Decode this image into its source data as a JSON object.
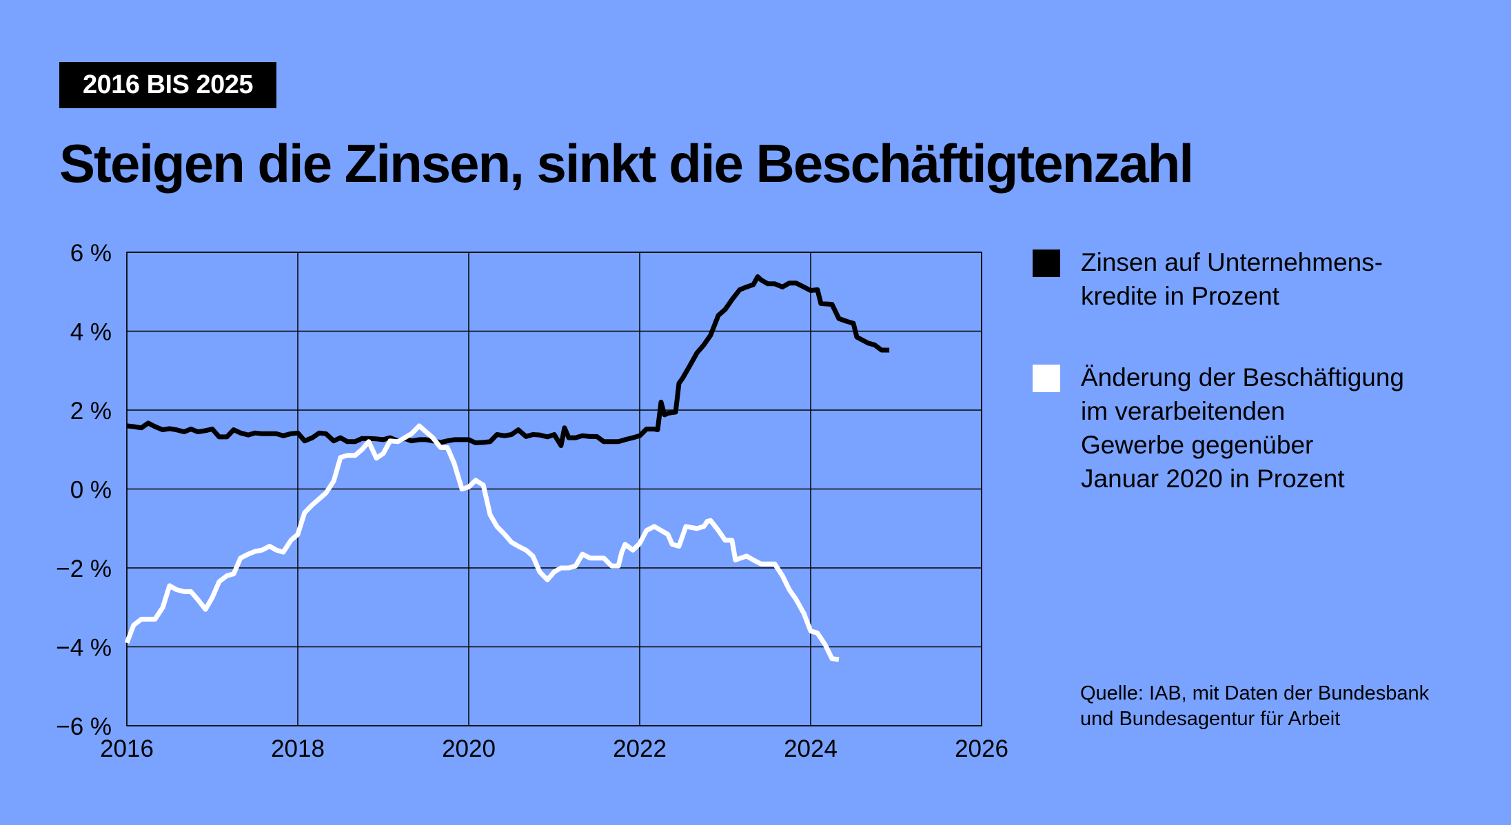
{
  "badge": "2016 BIS 2025",
  "title": "Steigen die Zinsen, sinkt die Beschäftigtenzahl",
  "legend": [
    {
      "label": "Zinsen auf Unternehmens-kredite in Prozent",
      "lines": [
        "Zinsen auf Unternehmens-",
        "kredite in Prozent"
      ],
      "color": "#000000"
    },
    {
      "label": "Änderung der Beschäftigung im verarbeitenden Gewerbe gegenüber Januar 2020 in Prozent",
      "lines": [
        "Änderung der Beschäftigung",
        "im verarbeitenden",
        "Gewerbe gegenüber",
        "Januar 2020 in Prozent"
      ],
      "color": "#ffffff"
    }
  ],
  "source": [
    "Quelle: IAB, mit Daten der Bundesbank",
    "und Bundesagentur für Arbeit"
  ],
  "colors": {
    "background": "#7aa2ff",
    "interest": "#000000",
    "employment": "#ffffff"
  },
  "chart_data": {
    "type": "line",
    "grid": true,
    "legend_position": "right",
    "xlim": [
      2016,
      2026
    ],
    "ylim": [
      -6,
      6
    ],
    "x_ticks": [
      2016,
      2018,
      2020,
      2022,
      2024,
      2026
    ],
    "x_tick_labels": [
      "2016",
      "2018",
      "2020",
      "2022",
      "2024",
      "2026"
    ],
    "y_ticks": [
      6,
      4,
      2,
      0,
      -2,
      -4,
      -6
    ],
    "y_tick_labels": [
      "6 %",
      "4 %",
      "2 %",
      "0 %",
      "−2 %",
      "−4 %",
      "−6 %"
    ],
    "series": [
      {
        "name": "Zinsen auf Unternehmens-kredite in Prozent",
        "color": "#000000",
        "points": [
          [
            2016.0,
            1.6
          ],
          [
            2016.08,
            1.58
          ],
          [
            2016.17,
            1.55
          ],
          [
            2016.25,
            1.67
          ],
          [
            2016.33,
            1.58
          ],
          [
            2016.42,
            1.5
          ],
          [
            2016.5,
            1.53
          ],
          [
            2016.58,
            1.5
          ],
          [
            2016.67,
            1.45
          ],
          [
            2016.75,
            1.52
          ],
          [
            2016.83,
            1.45
          ],
          [
            2016.92,
            1.48
          ],
          [
            2017.0,
            1.52
          ],
          [
            2017.08,
            1.32
          ],
          [
            2017.17,
            1.32
          ],
          [
            2017.25,
            1.5
          ],
          [
            2017.33,
            1.42
          ],
          [
            2017.42,
            1.37
          ],
          [
            2017.5,
            1.42
          ],
          [
            2017.58,
            1.4
          ],
          [
            2017.67,
            1.4
          ],
          [
            2017.75,
            1.4
          ],
          [
            2017.83,
            1.35
          ],
          [
            2017.92,
            1.4
          ],
          [
            2018.0,
            1.42
          ],
          [
            2018.08,
            1.22
          ],
          [
            2018.17,
            1.3
          ],
          [
            2018.25,
            1.42
          ],
          [
            2018.33,
            1.4
          ],
          [
            2018.42,
            1.22
          ],
          [
            2018.5,
            1.3
          ],
          [
            2018.58,
            1.2
          ],
          [
            2018.67,
            1.2
          ],
          [
            2018.75,
            1.28
          ],
          [
            2018.83,
            1.28
          ],
          [
            2018.92,
            1.27
          ],
          [
            2019.0,
            1.25
          ],
          [
            2019.08,
            1.3
          ],
          [
            2019.17,
            1.22
          ],
          [
            2019.25,
            1.28
          ],
          [
            2019.33,
            1.22
          ],
          [
            2019.42,
            1.25
          ],
          [
            2019.5,
            1.25
          ],
          [
            2019.58,
            1.22
          ],
          [
            2019.67,
            1.18
          ],
          [
            2019.75,
            1.22
          ],
          [
            2019.83,
            1.25
          ],
          [
            2019.92,
            1.25
          ],
          [
            2020.0,
            1.25
          ],
          [
            2020.08,
            1.17
          ],
          [
            2020.17,
            1.18
          ],
          [
            2020.25,
            1.2
          ],
          [
            2020.33,
            1.38
          ],
          [
            2020.42,
            1.35
          ],
          [
            2020.5,
            1.38
          ],
          [
            2020.58,
            1.5
          ],
          [
            2020.67,
            1.33
          ],
          [
            2020.75,
            1.38
          ],
          [
            2020.83,
            1.37
          ],
          [
            2020.92,
            1.32
          ],
          [
            2021.0,
            1.38
          ],
          [
            2021.08,
            1.1
          ],
          [
            2021.12,
            1.55
          ],
          [
            2021.17,
            1.3
          ],
          [
            2021.25,
            1.3
          ],
          [
            2021.33,
            1.35
          ],
          [
            2021.42,
            1.33
          ],
          [
            2021.5,
            1.33
          ],
          [
            2021.58,
            1.2
          ],
          [
            2021.67,
            1.2
          ],
          [
            2021.75,
            1.2
          ],
          [
            2021.83,
            1.25
          ],
          [
            2021.92,
            1.3
          ],
          [
            2022.0,
            1.35
          ],
          [
            2022.08,
            1.52
          ],
          [
            2022.17,
            1.52
          ],
          [
            2022.21,
            1.5
          ],
          [
            2022.25,
            2.2
          ],
          [
            2022.29,
            1.88
          ],
          [
            2022.33,
            1.92
          ],
          [
            2022.42,
            1.95
          ],
          [
            2022.46,
            2.68
          ],
          [
            2022.5,
            2.8
          ],
          [
            2022.58,
            3.1
          ],
          [
            2022.67,
            3.45
          ],
          [
            2022.75,
            3.65
          ],
          [
            2022.83,
            3.9
          ],
          [
            2022.92,
            4.4
          ],
          [
            2023.0,
            4.55
          ],
          [
            2023.08,
            4.8
          ],
          [
            2023.17,
            5.05
          ],
          [
            2023.25,
            5.12
          ],
          [
            2023.33,
            5.18
          ],
          [
            2023.38,
            5.38
          ],
          [
            2023.42,
            5.3
          ],
          [
            2023.5,
            5.2
          ],
          [
            2023.58,
            5.2
          ],
          [
            2023.67,
            5.12
          ],
          [
            2023.75,
            5.22
          ],
          [
            2023.83,
            5.22
          ],
          [
            2023.92,
            5.12
          ],
          [
            2024.0,
            5.03
          ],
          [
            2024.08,
            5.05
          ],
          [
            2024.12,
            4.7
          ],
          [
            2024.25,
            4.68
          ],
          [
            2024.33,
            4.32
          ],
          [
            2024.42,
            4.25
          ],
          [
            2024.5,
            4.2
          ],
          [
            2024.54,
            3.85
          ],
          [
            2024.67,
            3.7
          ],
          [
            2024.75,
            3.65
          ],
          [
            2024.83,
            3.52
          ],
          [
            2024.92,
            3.52
          ]
        ]
      },
      {
        "name": "Änderung der Beschäftigung im verarbeitenden Gewerbe gegenüber Januar 2020 in Prozent",
        "color": "#ffffff",
        "points": [
          [
            2016.0,
            -3.9
          ],
          [
            2016.08,
            -3.45
          ],
          [
            2016.17,
            -3.3
          ],
          [
            2016.25,
            -3.3
          ],
          [
            2016.33,
            -3.3
          ],
          [
            2016.42,
            -3.0
          ],
          [
            2016.5,
            -2.45
          ],
          [
            2016.58,
            -2.55
          ],
          [
            2016.67,
            -2.6
          ],
          [
            2016.75,
            -2.6
          ],
          [
            2016.83,
            -2.8
          ],
          [
            2016.92,
            -3.05
          ],
          [
            2017.0,
            -2.75
          ],
          [
            2017.08,
            -2.35
          ],
          [
            2017.17,
            -2.2
          ],
          [
            2017.25,
            -2.15
          ],
          [
            2017.33,
            -1.75
          ],
          [
            2017.42,
            -1.65
          ],
          [
            2017.5,
            -1.58
          ],
          [
            2017.58,
            -1.55
          ],
          [
            2017.67,
            -1.45
          ],
          [
            2017.75,
            -1.55
          ],
          [
            2017.83,
            -1.6
          ],
          [
            2017.92,
            -1.3
          ],
          [
            2018.0,
            -1.15
          ],
          [
            2018.08,
            -0.6
          ],
          [
            2018.17,
            -0.4
          ],
          [
            2018.25,
            -0.25
          ],
          [
            2018.33,
            -0.1
          ],
          [
            2018.42,
            0.2
          ],
          [
            2018.5,
            0.8
          ],
          [
            2018.58,
            0.85
          ],
          [
            2018.67,
            0.85
          ],
          [
            2018.75,
            1.0
          ],
          [
            2018.83,
            1.2
          ],
          [
            2018.92,
            0.78
          ],
          [
            2019.0,
            0.9
          ],
          [
            2019.08,
            1.22
          ],
          [
            2019.17,
            1.2
          ],
          [
            2019.25,
            1.3
          ],
          [
            2019.33,
            1.4
          ],
          [
            2019.42,
            1.6
          ],
          [
            2019.5,
            1.45
          ],
          [
            2019.58,
            1.3
          ],
          [
            2019.67,
            1.05
          ],
          [
            2019.75,
            1.05
          ],
          [
            2019.83,
            0.65
          ],
          [
            2019.92,
            0.0
          ],
          [
            2020.0,
            0.05
          ],
          [
            2020.08,
            0.22
          ],
          [
            2020.17,
            0.1
          ],
          [
            2020.25,
            -0.65
          ],
          [
            2020.33,
            -0.95
          ],
          [
            2020.42,
            -1.15
          ],
          [
            2020.5,
            -1.35
          ],
          [
            2020.58,
            -1.45
          ],
          [
            2020.67,
            -1.55
          ],
          [
            2020.75,
            -1.7
          ],
          [
            2020.83,
            -2.1
          ],
          [
            2020.92,
            -2.3
          ],
          [
            2021.0,
            -2.1
          ],
          [
            2021.08,
            -2.0
          ],
          [
            2021.17,
            -2.0
          ],
          [
            2021.25,
            -1.95
          ],
          [
            2021.33,
            -1.65
          ],
          [
            2021.42,
            -1.75
          ],
          [
            2021.5,
            -1.75
          ],
          [
            2021.58,
            -1.75
          ],
          [
            2021.67,
            -1.95
          ],
          [
            2021.75,
            -1.95
          ],
          [
            2021.79,
            -1.6
          ],
          [
            2021.83,
            -1.4
          ],
          [
            2021.92,
            -1.55
          ],
          [
            2022.0,
            -1.38
          ],
          [
            2022.08,
            -1.05
          ],
          [
            2022.17,
            -0.95
          ],
          [
            2022.25,
            -1.05
          ],
          [
            2022.33,
            -1.15
          ],
          [
            2022.38,
            -1.4
          ],
          [
            2022.46,
            -1.45
          ],
          [
            2022.54,
            -0.95
          ],
          [
            2022.67,
            -1.0
          ],
          [
            2022.75,
            -0.95
          ],
          [
            2022.79,
            -0.82
          ],
          [
            2022.83,
            -0.8
          ],
          [
            2022.92,
            -1.05
          ],
          [
            2023.0,
            -1.3
          ],
          [
            2023.08,
            -1.3
          ],
          [
            2023.12,
            -1.8
          ],
          [
            2023.25,
            -1.7
          ],
          [
            2023.33,
            -1.8
          ],
          [
            2023.42,
            -1.9
          ],
          [
            2023.58,
            -1.9
          ],
          [
            2023.67,
            -2.2
          ],
          [
            2023.75,
            -2.55
          ],
          [
            2023.83,
            -2.8
          ],
          [
            2023.92,
            -3.15
          ],
          [
            2024.0,
            -3.6
          ],
          [
            2024.08,
            -3.65
          ],
          [
            2024.17,
            -3.95
          ],
          [
            2024.25,
            -4.3
          ],
          [
            2024.33,
            -4.32
          ]
        ]
      }
    ]
  }
}
